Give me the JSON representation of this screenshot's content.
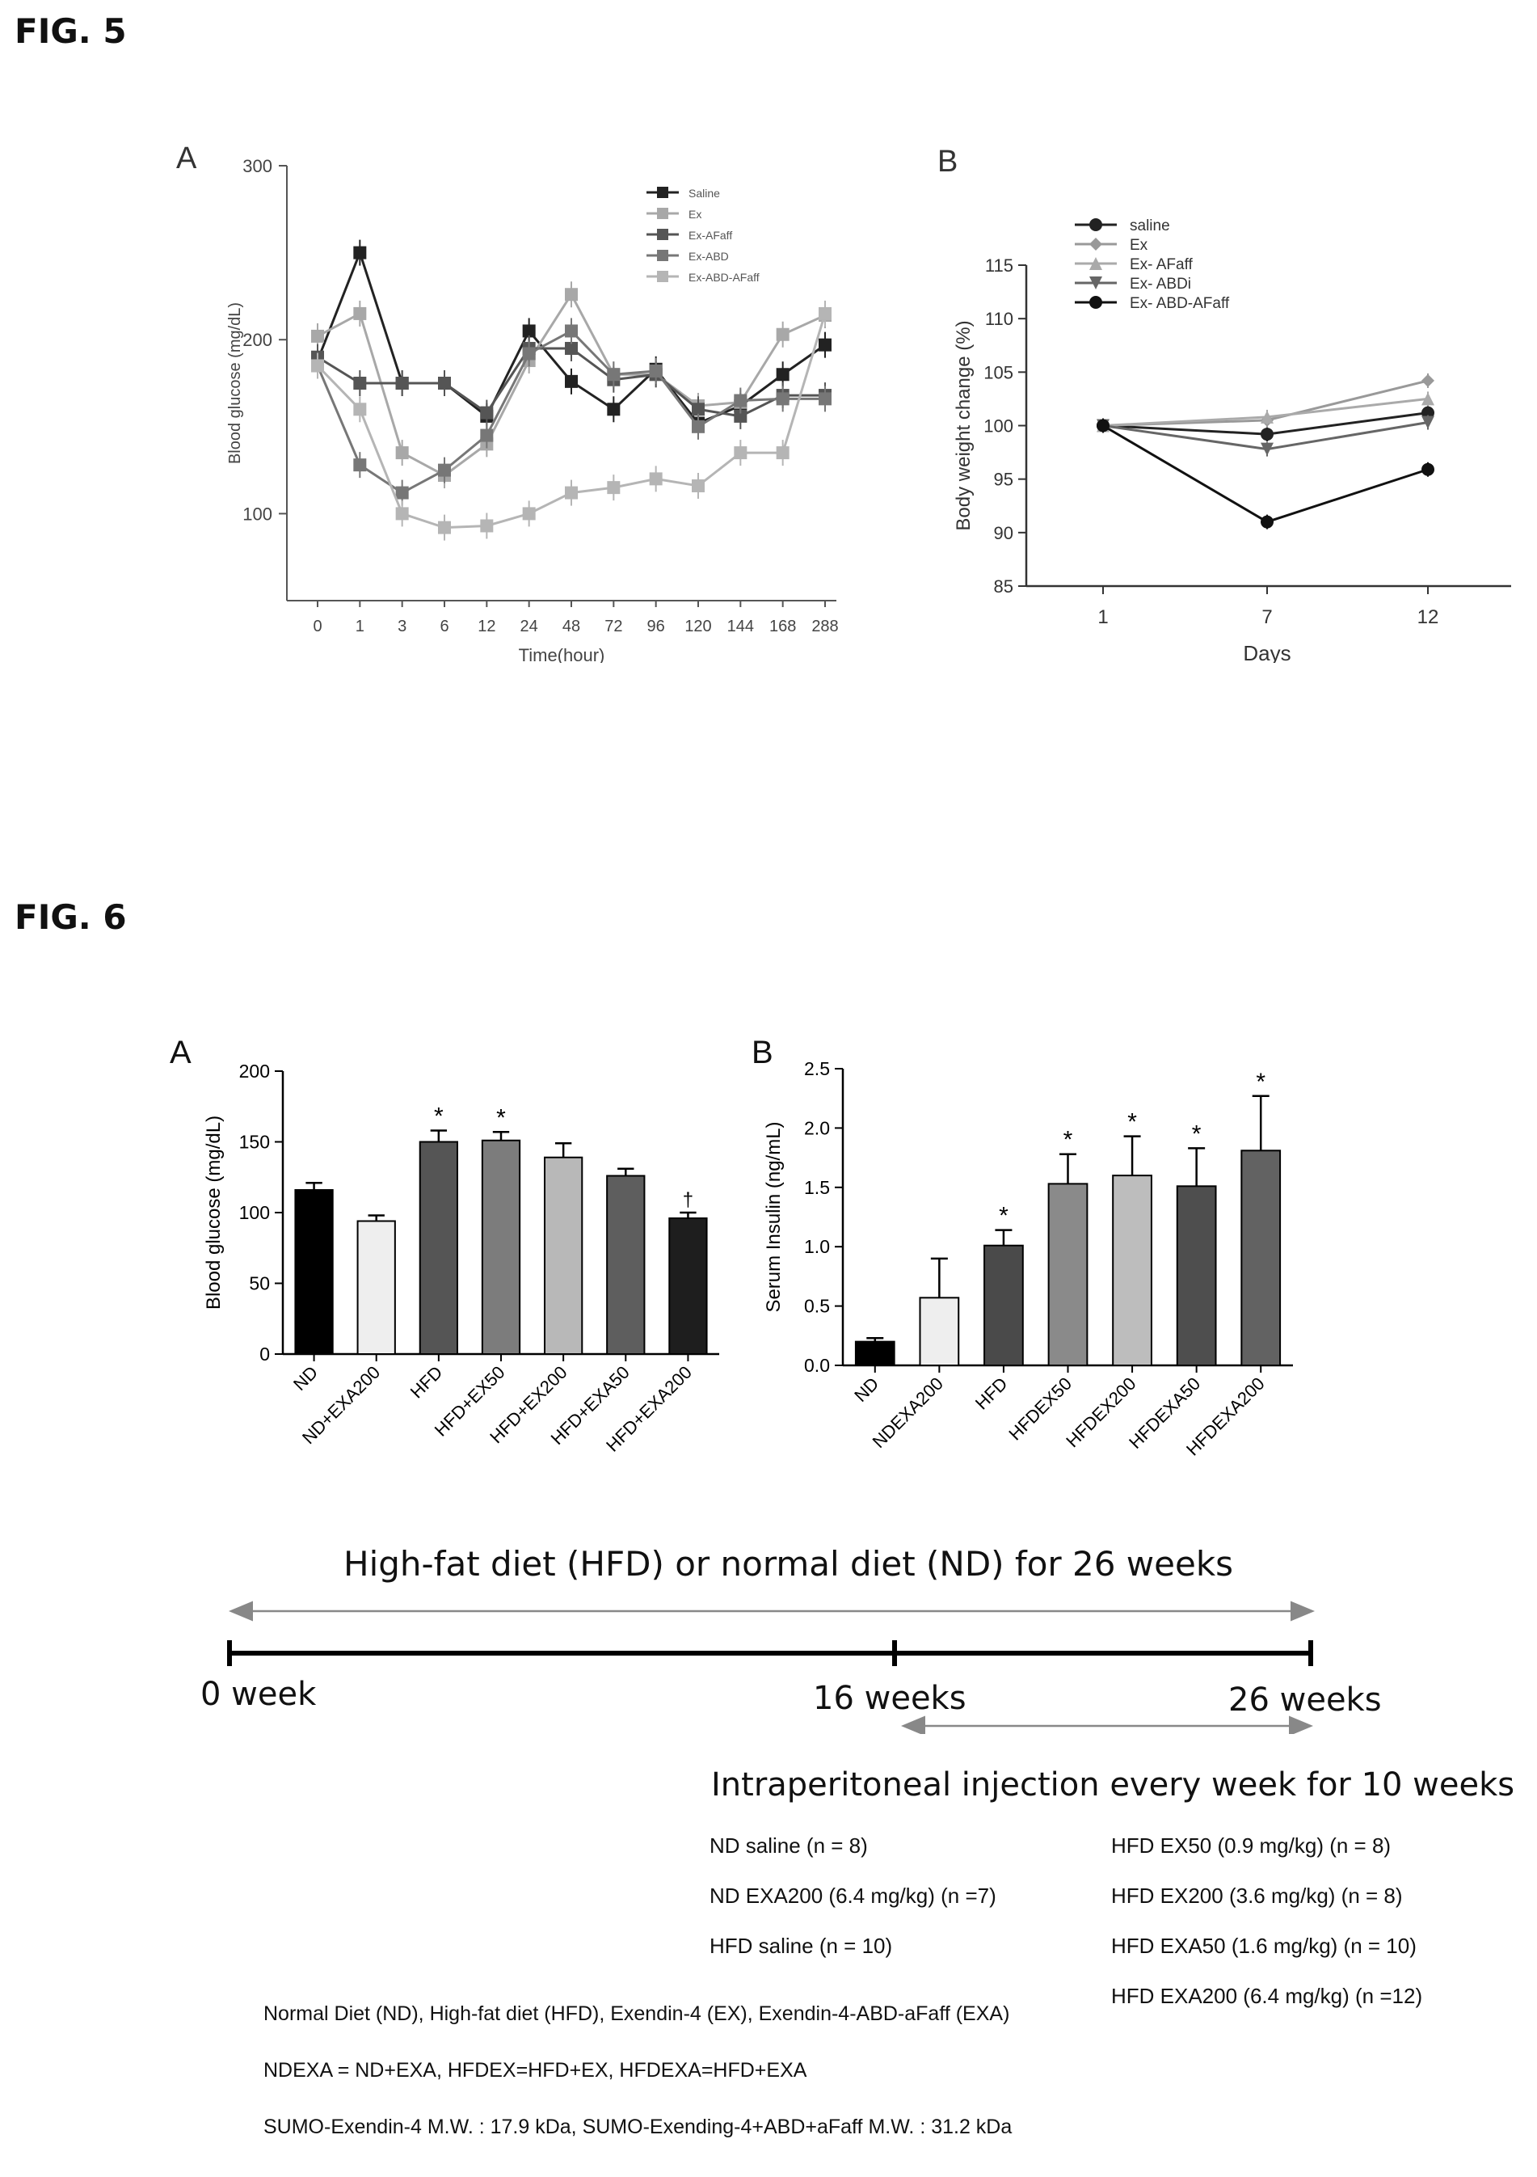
{
  "figures": {
    "fig5": {
      "label": "FIG. 5"
    },
    "fig6": {
      "label": "FIG. 6"
    }
  },
  "chart_data": [
    {
      "id": "fig5a",
      "type": "line",
      "panel": "A",
      "xlabel": "Time(hour)",
      "ylabel": "Blood glucose (mg/dL)",
      "categories": [
        "0",
        "1",
        "3",
        "6",
        "12",
        "24",
        "48",
        "72",
        "96",
        "120",
        "144",
        "168",
        "288"
      ],
      "y_ticks": [
        "300",
        "200",
        "100"
      ],
      "ylim": [
        50,
        300
      ],
      "legend_position": "top-right",
      "series": [
        {
          "name": "Saline",
          "color": "#222222",
          "marker": "square",
          "values": [
            188,
            250,
            175,
            175,
            156,
            205,
            176,
            160,
            183,
            152,
            162,
            180,
            197
          ]
        },
        {
          "name": "Ex",
          "color": "#a8a8a8",
          "marker": "square",
          "values": [
            202,
            215,
            135,
            122,
            140,
            188,
            226,
            180,
            180,
            162,
            164,
            203,
            214
          ]
        },
        {
          "name": "Ex-AFaff",
          "color": "#555555",
          "marker": "square",
          "values": [
            190,
            175,
            175,
            175,
            158,
            195,
            195,
            177,
            180,
            160,
            156,
            168,
            168
          ]
        },
        {
          "name": "Ex-ABD",
          "color": "#777777",
          "marker": "square",
          "values": [
            185,
            128,
            112,
            125,
            145,
            192,
            205,
            180,
            182,
            150,
            165,
            166,
            166
          ]
        },
        {
          "name": "Ex-ABD-AFaff",
          "color": "#b5b5b5",
          "marker": "square",
          "values": [
            185,
            160,
            100,
            92,
            93,
            100,
            112,
            115,
            120,
            116,
            135,
            135,
            215
          ]
        }
      ]
    },
    {
      "id": "fig5b",
      "type": "line",
      "panel": "B",
      "xlabel": "Days",
      "ylabel": "Body weight change (%)",
      "categories": [
        "1",
        "7",
        "12"
      ],
      "y_ticks": [
        "115",
        "110",
        "105",
        "100",
        "95",
        "90",
        "85"
      ],
      "ylim": [
        85,
        115
      ],
      "legend_position": "top-left",
      "series": [
        {
          "name": "saline",
          "color": "#222222",
          "marker": "circle",
          "values": [
            100,
            99.2,
            101.2
          ]
        },
        {
          "name": "Ex",
          "color": "#999999",
          "marker": "diamond",
          "values": [
            100,
            100.5,
            104.2
          ]
        },
        {
          "name": "Ex- AFaff",
          "color": "#aaaaaa",
          "marker": "triangle",
          "values": [
            100,
            100.8,
            102.5
          ]
        },
        {
          "name": "Ex- ABDi",
          "color": "#666666",
          "marker": "triangle-down",
          "values": [
            100,
            97.8,
            100.3
          ]
        },
        {
          "name": "Ex- ABD-AFaff",
          "color": "#111111",
          "marker": "circle",
          "values": [
            100,
            91,
            95.9
          ]
        }
      ]
    },
    {
      "id": "fig6a",
      "type": "bar",
      "panel": "A",
      "ylabel": "Blood glucose (mg/dL)",
      "categories": [
        "ND",
        "ND+EXA200",
        "HFD",
        "HFD+EX50",
        "HFD+EX200",
        "HFD+EXA50",
        "HFD+EXA200"
      ],
      "values": [
        116,
        94,
        150,
        151,
        139,
        126,
        96
      ],
      "errors": [
        5,
        4,
        8,
        6,
        10,
        5,
        4
      ],
      "annotations": [
        "",
        "",
        "*",
        "*",
        "",
        "",
        "†"
      ],
      "colors": [
        "#000000",
        "#eeeeee",
        "#555555",
        "#7c7c7c",
        "#b8b8b8",
        "#5e5e5e",
        "#1e1e1e"
      ],
      "y_ticks": [
        "0",
        "50",
        "100",
        "150",
        "200"
      ],
      "ylim": [
        0,
        200
      ]
    },
    {
      "id": "fig6b",
      "type": "bar",
      "panel": "B",
      "ylabel": "Serum Insulin (ng/mL)",
      "categories": [
        "ND",
        "NDEXA200",
        "HFD",
        "HFDEX50",
        "HFDEX200",
        "HFDEXA50",
        "HFDEXA200"
      ],
      "values": [
        0.2,
        0.57,
        1.01,
        1.53,
        1.6,
        1.51,
        1.81
      ],
      "errors": [
        0.03,
        0.33,
        0.13,
        0.25,
        0.33,
        0.32,
        0.46
      ],
      "annotations": [
        "",
        "",
        "*",
        "*",
        "*",
        "*",
        "*"
      ],
      "colors": [
        "#000000",
        "#eeeeee",
        "#4a4a4a",
        "#8a8a8a",
        "#bdbdbd",
        "#4e4e4e",
        "#626262"
      ],
      "y_ticks": [
        "0.0",
        "0.5",
        "1.0",
        "1.5",
        "2.0",
        "2.5"
      ],
      "ylim": [
        0,
        2.5
      ]
    }
  ],
  "timeline": {
    "title": "High-fat diet (HFD) or normal diet (ND) for 26 weeks",
    "start_label": "0 week",
    "mid_label": "16 weeks",
    "end_label": "26 weeks",
    "injection_title": "Intraperitoneal injection every week for 10 weeks",
    "groups_left": [
      "ND saline (n = 8)",
      "ND EXA200 (6.4 mg/kg) (n =7)",
      "HFD saline (n = 10)"
    ],
    "groups_right": [
      "HFD EX50 (0.9 mg/kg) (n = 8)",
      "HFD EX200 (3.6 mg/kg) (n = 8)",
      "HFD EXA50 (1.6 mg/kg) (n = 10)",
      "HFD EXA200 (6.4 mg/kg) (n =12)"
    ]
  },
  "notes": [
    "Normal Diet (ND), High-fat diet (HFD), Exendin-4 (EX), Exendin-4-ABD-aFaff (EXA)",
    "NDEXA = ND+EXA, HFDEX=HFD+EX, HFDEXA=HFD+EXA",
    "SUMO-Exendin-4 M.W. : 17.9 kDa, SUMO-Exending-4+ABD+aFaff M.W. : 31.2 kDa"
  ]
}
